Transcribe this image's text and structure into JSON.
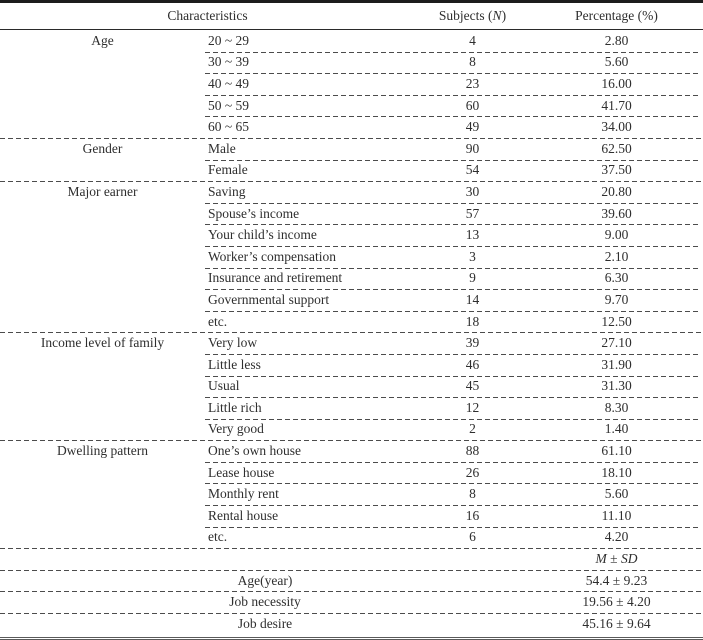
{
  "table": {
    "header": {
      "characteristics": "Characteristics",
      "subjects_prefix": "Subjects (",
      "subjects_n": "N",
      "subjects_suffix": ")",
      "percentage": "Percentage (%)"
    },
    "groups": [
      {
        "label": "Age",
        "rows": [
          {
            "item": "20 ~ 29",
            "n": "4",
            "pct": "2.80"
          },
          {
            "item": "30 ~ 39",
            "n": "8",
            "pct": "5.60"
          },
          {
            "item": "40 ~ 49",
            "n": "23",
            "pct": "16.00"
          },
          {
            "item": "50 ~ 59",
            "n": "60",
            "pct": "41.70"
          },
          {
            "item": "60 ~ 65",
            "n": "49",
            "pct": "34.00"
          }
        ]
      },
      {
        "label": "Gender",
        "rows": [
          {
            "item": "Male",
            "n": "90",
            "pct": "62.50"
          },
          {
            "item": "Female",
            "n": "54",
            "pct": "37.50"
          }
        ]
      },
      {
        "label": "Major earner",
        "rows": [
          {
            "item": "Saving",
            "n": "30",
            "pct": "20.80"
          },
          {
            "item": "Spouse’s income",
            "n": "57",
            "pct": "39.60"
          },
          {
            "item": "Your child’s income",
            "n": "13",
            "pct": "9.00"
          },
          {
            "item": "Worker’s compensation",
            "n": "3",
            "pct": "2.10"
          },
          {
            "item": "Insurance and retirement",
            "n": "9",
            "pct": "6.30"
          },
          {
            "item": "Governmental support",
            "n": "14",
            "pct": "9.70"
          },
          {
            "item": "etc.",
            "n": "18",
            "pct": "12.50"
          }
        ]
      },
      {
        "label": "Income level of family",
        "rows": [
          {
            "item": "Very low",
            "n": "39",
            "pct": "27.10"
          },
          {
            "item": "Little less",
            "n": "46",
            "pct": "31.90"
          },
          {
            "item": "Usual",
            "n": "45",
            "pct": "31.30"
          },
          {
            "item": "Little rich",
            "n": "12",
            "pct": "8.30"
          },
          {
            "item": "Very good",
            "n": "2",
            "pct": "1.40"
          }
        ]
      },
      {
        "label": "Dwelling pattern",
        "rows": [
          {
            "item": "One’s own house",
            "n": "88",
            "pct": "61.10"
          },
          {
            "item": "Lease house",
            "n": "26",
            "pct": "18.10"
          },
          {
            "item": "Monthly rent",
            "n": "8",
            "pct": "5.60"
          },
          {
            "item": "Rental house",
            "n": "16",
            "pct": "11.10"
          },
          {
            "item": "etc.",
            "n": "6",
            "pct": "4.20"
          }
        ]
      }
    ],
    "summary": {
      "m": "M",
      "plus_minus": "±",
      "sd": "SD",
      "rows": [
        {
          "label": "Age(year)",
          "value": "54.4 ± 9.23"
        },
        {
          "label": "Job necessity",
          "value": "19.56 ± 4.20"
        },
        {
          "label": "Job desire",
          "value": "45.16 ± 9.64"
        }
      ]
    }
  }
}
